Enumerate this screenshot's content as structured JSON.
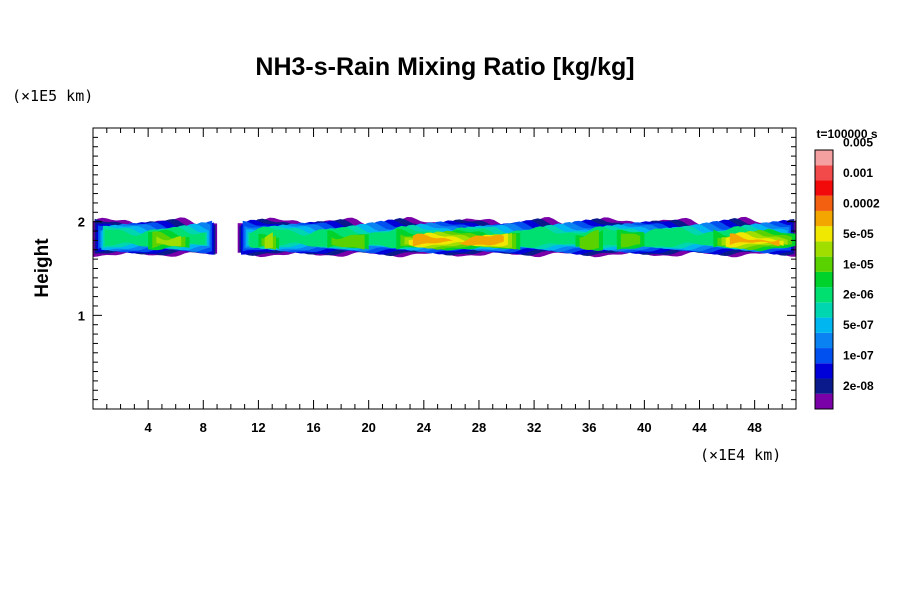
{
  "chart_data": {
    "type": "heatmap",
    "title": "NH3-s-Rain Mixing Ratio [kg/kg]",
    "xlabel": "",
    "ylabel": "Height",
    "x_unit": "(×1E4 km)",
    "y_unit": "(×1E5 km)",
    "time_label": "t=100000 s",
    "xlim": [
      0,
      51
    ],
    "ylim": [
      0,
      3
    ],
    "x_ticks": [
      4,
      8,
      12,
      16,
      20,
      24,
      28,
      32,
      36,
      40,
      44,
      48
    ],
    "y_ticks": [
      1,
      2
    ],
    "colorbar": {
      "colors": [
        "#7a00a8",
        "#0a1a8a",
        "#0000d8",
        "#0050f0",
        "#0a82f2",
        "#00b6f0",
        "#00d6b0",
        "#00e070",
        "#00d22c",
        "#5ad200",
        "#a0de00",
        "#f0e800",
        "#f4a600",
        "#f26010",
        "#f20a0a",
        "#f24a4a",
        "#f4a0a0"
      ],
      "labels": [
        "2e-08",
        "1e-07",
        "5e-07",
        "2e-06",
        "1e-05",
        "5e-05",
        "0.0002",
        "0.001",
        "0.005"
      ]
    },
    "cloud_layer": {
      "bottom_height": 1.65,
      "top_height": 2.0,
      "segments": [
        {
          "x_start": 0,
          "x_end": 9.0,
          "peak_level": 10
        },
        {
          "x_start": 10.5,
          "x_end": 51,
          "peak_level": 12
        }
      ],
      "cores": [
        {
          "x_start": 4,
          "x_end": 7,
          "level": 10
        },
        {
          "x_start": 12,
          "x_end": 13.5,
          "level": 10
        },
        {
          "x_start": 17,
          "x_end": 20,
          "level": 9
        },
        {
          "x_start": 22,
          "x_end": 31,
          "level": 12
        },
        {
          "x_start": 35,
          "x_end": 37,
          "level": 9
        },
        {
          "x_start": 38,
          "x_end": 40,
          "level": 9
        },
        {
          "x_start": 45,
          "x_end": 51,
          "level": 12
        }
      ]
    }
  }
}
